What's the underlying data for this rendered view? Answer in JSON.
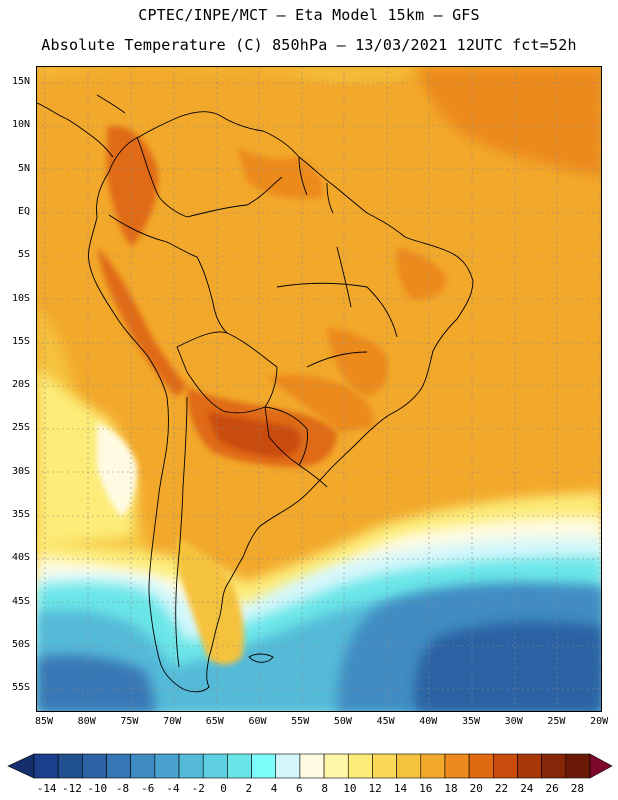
{
  "header": {
    "title_line1": "CPTEC/INPE/MCT –  Eta Model 15km – GFS",
    "title_line2": "Absolute Temperature (C) 850hPa – 13/03/2021 12UTC fct=52h"
  },
  "map": {
    "lat_labels": [
      "15N",
      "10N",
      "5N",
      "EQ",
      "5S",
      "10S",
      "15S",
      "20S",
      "25S",
      "30S",
      "35S",
      "40S",
      "45S",
      "50S",
      "55S"
    ],
    "lon_labels": [
      "85W",
      "80W",
      "75W",
      "70W",
      "65W",
      "60W",
      "55W",
      "50W",
      "45W",
      "40W",
      "35W",
      "30W",
      "25W",
      "20W"
    ],
    "gridline_color": "#888888"
  },
  "colorbar": {
    "ticks": [
      "-14",
      "-12",
      "-10",
      "-8",
      "-6",
      "-4",
      "-2",
      "0",
      "2",
      "4",
      "6",
      "8",
      "10",
      "12",
      "14",
      "16",
      "18",
      "20",
      "22",
      "24",
      "26",
      "28"
    ],
    "colors": [
      "#1b3f8b",
      "#21508f",
      "#2b62a3",
      "#3777b5",
      "#3f8cc3",
      "#4aa3cf",
      "#55bad8",
      "#5fd0df",
      "#6ae6e8",
      "#7dfcfc",
      "#d4f7fb",
      "#fffbe3",
      "#fff7a8",
      "#fcec78",
      "#f9d85a",
      "#f5c23e",
      "#f2a82b",
      "#ec8a1e",
      "#e06a12",
      "#c94c0c",
      "#a73709",
      "#862609",
      "#6c1a08"
    ],
    "under_color": "#152e6e",
    "over_color": "#7d0a2a"
  }
}
